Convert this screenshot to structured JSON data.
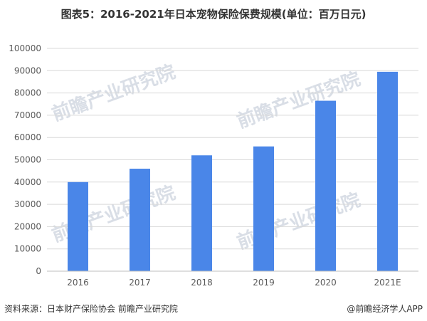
{
  "title": "图表5：2016-2021年日本宠物保险保费规模(单位：百万日元)",
  "source": "资料来源：日本财产保险协会 前瞻产业研究院",
  "credit": "@前瞻经济学人APP",
  "watermark": "前瞻产业研究院",
  "chart_data": {
    "type": "bar",
    "categories": [
      "2016",
      "2017",
      "2018",
      "2019",
      "2020",
      "2021E"
    ],
    "values": [
      40000,
      46000,
      52000,
      56000,
      76500,
      89500
    ],
    "ylim": [
      0,
      100000
    ],
    "yticks": [
      0,
      10000,
      20000,
      30000,
      40000,
      50000,
      60000,
      70000,
      80000,
      90000,
      100000
    ],
    "grid": true,
    "bar_color": "#4a86e8"
  }
}
